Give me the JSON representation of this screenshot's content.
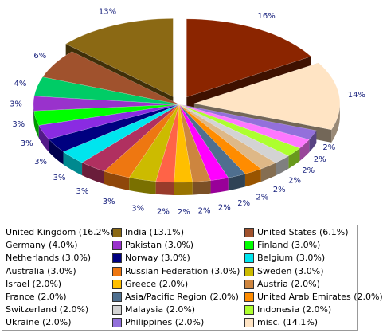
{
  "chart_data": {
    "type": "pie",
    "title": "",
    "legend_placement": "bottom",
    "slices": [
      {
        "label": "United Kingdom (16.2%)",
        "value": 16.2,
        "pct_text": "16%",
        "color": "#8b2500",
        "exploded": true
      },
      {
        "label": "misc. (14.1%)",
        "value": 14.1,
        "pct_text": "14%",
        "color": "#ffe4c4",
        "exploded": true
      },
      {
        "label": "Philippines (2.0%)",
        "value": 2.0,
        "pct_text": "2%",
        "color": "#9370db",
        "exploded": false
      },
      {
        "label": "Ukraine (2.0%)",
        "value": 2.0,
        "pct_text": "2%",
        "color": "#ff77ff",
        "exploded": false
      },
      {
        "label": "Indonesia (2.0%)",
        "value": 2.0,
        "pct_text": "2%",
        "color": "#adff2f",
        "exploded": false
      },
      {
        "label": "Malaysia (2.0%)",
        "value": 2.0,
        "pct_text": "2%",
        "color": "#d3d3d3",
        "exploded": false
      },
      {
        "label": "Switzerland (2.0%)",
        "value": 2.0,
        "pct_text": "2%",
        "color": "#deb887",
        "exploded": false
      },
      {
        "label": "United Arab Emirates (2.0%)",
        "value": 2.0,
        "pct_text": "2%",
        "color": "#ff8c00",
        "exploded": false
      },
      {
        "label": "Asia/Pacific Region (2.0%)",
        "value": 2.0,
        "pct_text": "2%",
        "color": "#4f6f8f",
        "exploded": false
      },
      {
        "label": "France (2.0%)",
        "value": 2.0,
        "pct_text": "2%",
        "color": "#ff00ff",
        "exploded": false
      },
      {
        "label": "Austria (2.0%)",
        "value": 2.0,
        "pct_text": "2%",
        "color": "#cd853f",
        "exploded": false
      },
      {
        "label": "Greece (2.0%)",
        "value": 2.0,
        "pct_text": "2%",
        "color": "#ffbf00",
        "exploded": false
      },
      {
        "label": "Israel (2.0%)",
        "value": 2.0,
        "pct_text": "2%",
        "color": "#ff6347",
        "exploded": false
      },
      {
        "label": "Sweden (3.0%)",
        "value": 3.0,
        "pct_text": "3%",
        "color": "#ccbb00",
        "exploded": false
      },
      {
        "label": "Russian Federation (3.0%)",
        "value": 3.0,
        "pct_text": "3%",
        "color": "#ee7711",
        "exploded": false
      },
      {
        "label": "Australia (3.0%)",
        "value": 3.0,
        "pct_text": "3%",
        "color": "#b03060",
        "exploded": false
      },
      {
        "label": "Belgium (3.0%)",
        "value": 3.0,
        "pct_text": "3%",
        "color": "#00e5ee",
        "exploded": false
      },
      {
        "label": "Norway (3.0%)",
        "value": 3.0,
        "pct_text": "3%",
        "color": "#000080",
        "exploded": false
      },
      {
        "label": "Netherlands (3.0%)",
        "value": 3.0,
        "pct_text": "3%",
        "color": "#8a2be2",
        "exploded": false
      },
      {
        "label": "Finland (3.0%)",
        "value": 3.0,
        "pct_text": "3%",
        "color": "#00ff00",
        "exploded": false
      },
      {
        "label": "Pakistan (3.0%)",
        "value": 3.0,
        "pct_text": "3%",
        "color": "#9932cc",
        "exploded": false
      },
      {
        "label": "Germany (4.0%)",
        "value": 4.0,
        "pct_text": "4%",
        "color": "#00cc66",
        "exploded": false
      },
      {
        "label": "United States (6.1%)",
        "value": 6.1,
        "pct_text": "6%",
        "color": "#a0522d",
        "exploded": false
      },
      {
        "label": "India (13.1%)",
        "value": 13.1,
        "pct_text": "13%",
        "color": "#8b6914",
        "exploded": true
      }
    ],
    "legend_order": [
      "United Kingdom (16.2%)",
      "India (13.1%)",
      "United States (6.1%)",
      "Germany (4.0%)",
      "Pakistan (3.0%)",
      "Finland (3.0%)",
      "Netherlands (3.0%)",
      "Norway (3.0%)",
      "Belgium (3.0%)",
      "Australia (3.0%)",
      "Russian Federation (3.0%)",
      "Sweden (3.0%)",
      "Israel (2.0%)",
      "Greece (2.0%)",
      "Austria (2.0%)",
      "France (2.0%)",
      "Asia/Pacific Region (2.0%)",
      "United Arab Emirates (2.0%)",
      "Switzerland (2.0%)",
      "Malaysia (2.0%)",
      "Indonesia (2.0%)",
      "Ukraine (2.0%)",
      "Philippines (2.0%)",
      "misc. (14.1%)"
    ]
  }
}
